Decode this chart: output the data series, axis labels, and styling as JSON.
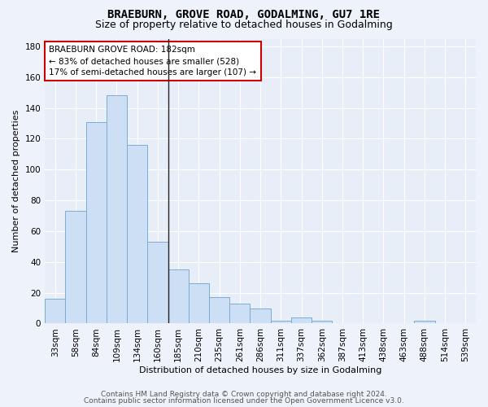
{
  "title": "BRAEBURN, GROVE ROAD, GODALMING, GU7 1RE",
  "subtitle": "Size of property relative to detached houses in Godalming",
  "xlabel": "Distribution of detached houses by size in Godalming",
  "ylabel": "Number of detached properties",
  "categories": [
    "33sqm",
    "58sqm",
    "84sqm",
    "109sqm",
    "134sqm",
    "160sqm",
    "185sqm",
    "210sqm",
    "235sqm",
    "261sqm",
    "286sqm",
    "311sqm",
    "337sqm",
    "362sqm",
    "387sqm",
    "413sqm",
    "438sqm",
    "463sqm",
    "488sqm",
    "514sqm",
    "539sqm"
  ],
  "values": [
    16,
    73,
    131,
    148,
    116,
    53,
    35,
    26,
    17,
    13,
    10,
    2,
    4,
    2,
    0,
    0,
    0,
    0,
    2,
    0,
    0
  ],
  "bar_color": "#ccdff5",
  "bar_edge_color": "#7aadd4",
  "highlight_line_after_index": 5,
  "annotation_text": "BRAEBURN GROVE ROAD: 182sqm\n← 83% of detached houses are smaller (528)\n17% of semi-detached houses are larger (107) →",
  "annotation_box_facecolor": "#ffffff",
  "annotation_box_edgecolor": "#cc0000",
  "ylim": [
    0,
    185
  ],
  "yticks": [
    0,
    20,
    40,
    60,
    80,
    100,
    120,
    140,
    160,
    180
  ],
  "footer_line1": "Contains HM Land Registry data © Crown copyright and database right 2024.",
  "footer_line2": "Contains public sector information licensed under the Open Government Licence v3.0.",
  "bg_color": "#eef2fa",
  "plot_bg_color": "#e8eef8",
  "grid_color": "#ffffff",
  "title_fontsize": 10,
  "subtitle_fontsize": 9,
  "axis_label_fontsize": 8,
  "tick_fontsize": 7.5,
  "annotation_fontsize": 7.5,
  "footer_fontsize": 6.5
}
